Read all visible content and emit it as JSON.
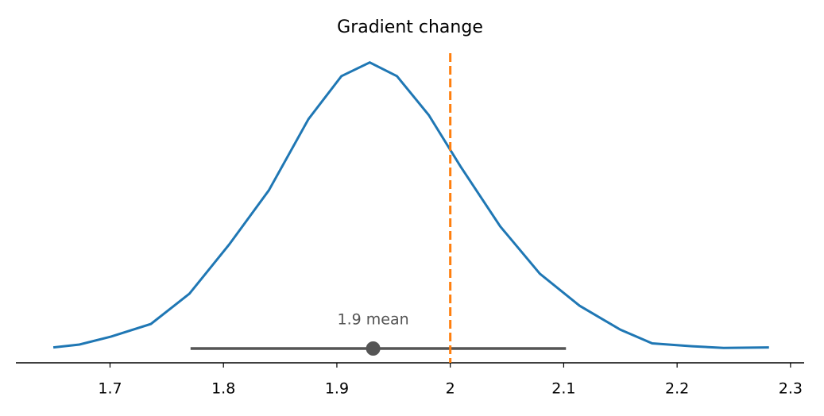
{
  "chart_data": {
    "type": "posterior",
    "title": "Gradient change",
    "x": [
      1.65,
      1.673,
      1.701,
      1.736,
      1.77,
      1.805,
      1.84,
      1.875,
      1.904,
      1.929,
      1.953,
      1.981,
      2.009,
      2.044,
      2.079,
      2.114,
      2.15,
      2.178,
      2.213,
      2.241,
      2.281
    ],
    "values": [
      0.01,
      0.06,
      0.2,
      0.42,
      0.95,
      1.81,
      2.76,
      4.01,
      4.76,
      5.0,
      4.76,
      4.08,
      3.18,
      2.13,
      1.3,
      0.74,
      0.32,
      0.08,
      0.03,
      0.0,
      0.01
    ],
    "color": "#1f77b4",
    "hdi": [
      1.771,
      2.102
    ],
    "hdi_color": "#555555",
    "mean": 1.932,
    "mean_label": "1.9 mean",
    "ref_value": 2.0,
    "ref_color": "#ff7f0e",
    "xlim": [
      1.617,
      2.312
    ],
    "xticks": [
      1.7,
      1.8,
      1.9,
      2.0,
      2.1,
      2.2,
      2.3
    ],
    "ylim": [
      -0.26,
      5.26
    ]
  }
}
